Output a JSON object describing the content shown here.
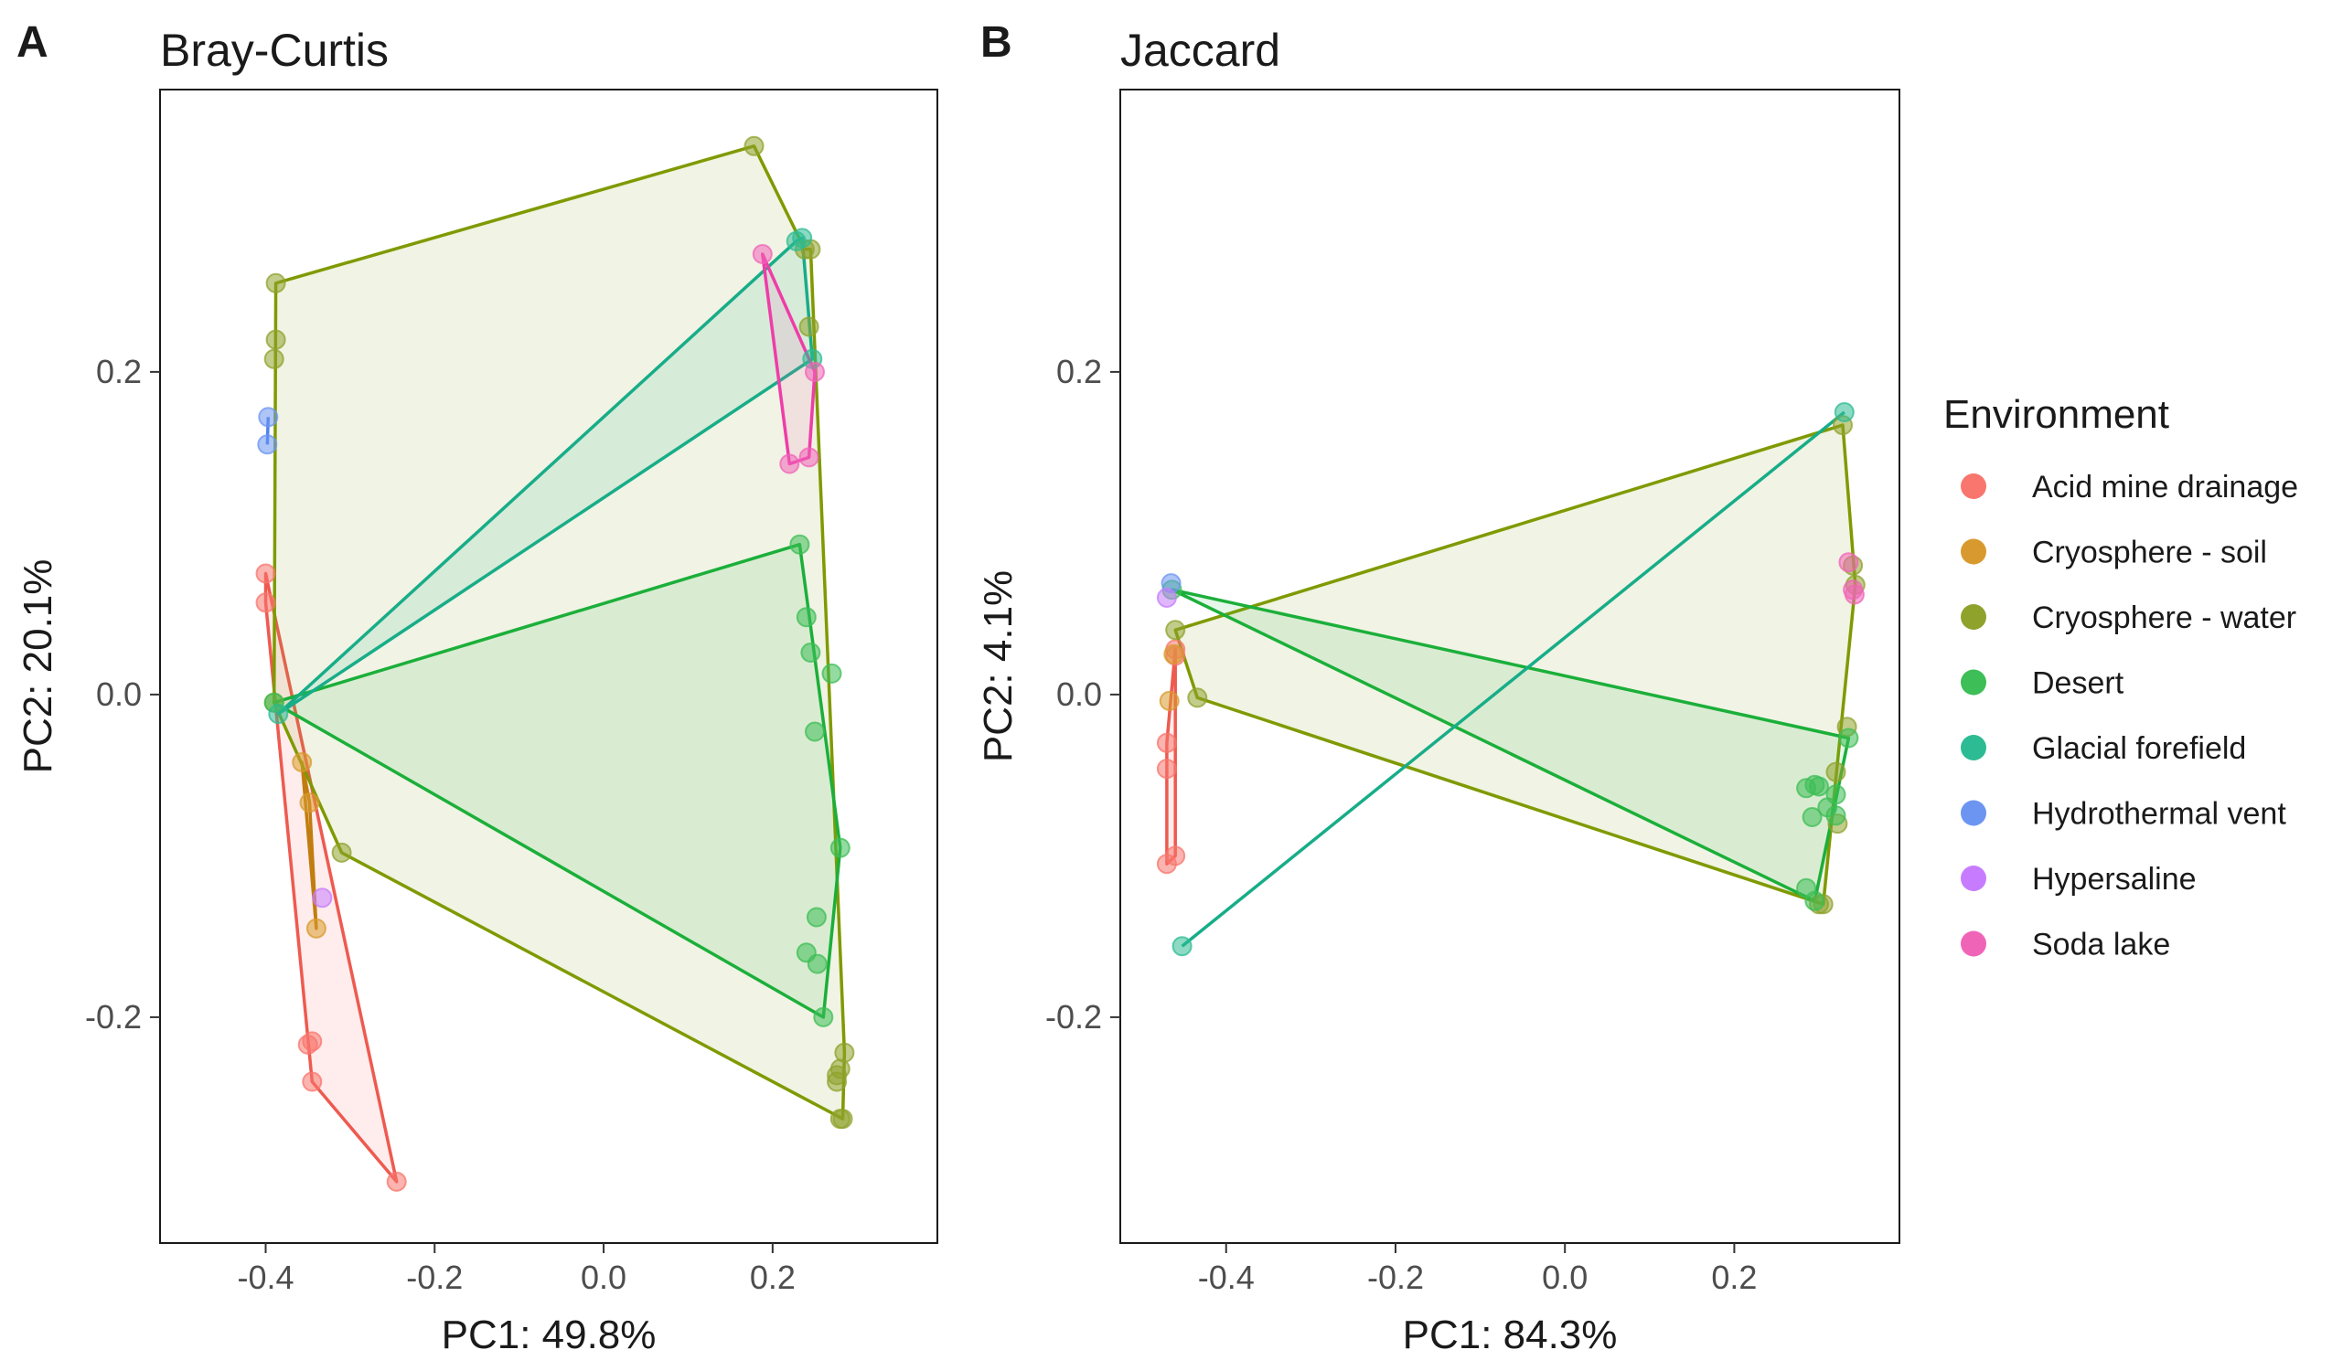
{
  "chart_data": [
    {
      "type": "scatter",
      "panel_label": "A",
      "title": "Bray-Curtis",
      "xlabel": "PC1: 49.8%",
      "ylabel": "PC2: 20.1%",
      "xlim": [
        -0.525,
        0.395
      ],
      "ylim": [
        -0.34,
        0.375
      ],
      "xticks": [
        -0.4,
        -0.2,
        0.0,
        0.2
      ],
      "xtick_labels": [
        "-0.4",
        "-0.2",
        "0.0",
        "0.2"
      ],
      "yticks": [
        -0.2,
        0.0,
        0.2
      ],
      "ytick_labels": [
        "-0.2",
        "0.0",
        "0.2"
      ],
      "series": [
        {
          "group": "Acid mine drainage",
          "points": [
            [
              -0.4,
              0.075
            ],
            [
              -0.4,
              0.057
            ],
            [
              -0.35,
              -0.217
            ],
            [
              -0.345,
              -0.215
            ],
            [
              -0.345,
              -0.24
            ],
            [
              -0.245,
              -0.302
            ]
          ],
          "hull": [
            [
              -0.4,
              0.075
            ],
            [
              -0.245,
              -0.302
            ],
            [
              -0.345,
              -0.24
            ],
            [
              -0.4,
              0.057
            ]
          ]
        },
        {
          "group": "Cryosphere - soil",
          "points": [
            [
              -0.357,
              -0.042
            ],
            [
              -0.348,
              -0.067
            ],
            [
              -0.34,
              -0.145
            ]
          ],
          "hull": [
            [
              -0.357,
              -0.042
            ],
            [
              -0.348,
              -0.067
            ],
            [
              -0.34,
              -0.145
            ]
          ]
        },
        {
          "group": "Cryosphere - water",
          "points": [
            [
              -0.388,
              0.255
            ],
            [
              -0.388,
              0.22
            ],
            [
              -0.39,
              0.208
            ],
            [
              -0.39,
              -0.005
            ],
            [
              -0.31,
              -0.098
            ],
            [
              0.178,
              0.34
            ],
            [
              0.238,
              0.276
            ],
            [
              0.245,
              0.276
            ],
            [
              0.243,
              0.228
            ],
            [
              0.285,
              -0.222
            ],
            [
              0.28,
              -0.232
            ],
            [
              0.276,
              -0.24
            ],
            [
              0.276,
              -0.236
            ],
            [
              0.283,
              -0.263
            ],
            [
              0.28,
              -0.263
            ]
          ],
          "hull": [
            [
              0.178,
              0.34
            ],
            [
              0.238,
              0.276
            ],
            [
              0.245,
              0.276
            ],
            [
              0.285,
              -0.222
            ],
            [
              0.283,
              -0.263
            ],
            [
              -0.31,
              -0.098
            ],
            [
              -0.39,
              -0.005
            ],
            [
              -0.388,
              0.255
            ]
          ]
        },
        {
          "group": "Desert",
          "points": [
            [
              -0.39,
              -0.005
            ],
            [
              0.232,
              0.093
            ],
            [
              0.24,
              0.048
            ],
            [
              0.245,
              0.026
            ],
            [
              0.27,
              0.013
            ],
            [
              0.25,
              -0.023
            ],
            [
              0.28,
              -0.095
            ],
            [
              0.252,
              -0.138
            ],
            [
              0.24,
              -0.16
            ],
            [
              0.253,
              -0.167
            ],
            [
              0.26,
              -0.2
            ]
          ],
          "hull": [
            [
              -0.39,
              -0.005
            ],
            [
              0.232,
              0.093
            ],
            [
              0.28,
              -0.095
            ],
            [
              0.26,
              -0.2
            ]
          ]
        },
        {
          "group": "Glacial forefield",
          "points": [
            [
              -0.385,
              -0.012
            ],
            [
              0.228,
              0.281
            ],
            [
              0.235,
              0.283
            ],
            [
              0.247,
              0.208
            ]
          ],
          "hull": [
            [
              -0.385,
              -0.012
            ],
            [
              0.228,
              0.281
            ],
            [
              0.235,
              0.283
            ],
            [
              0.247,
              0.208
            ]
          ]
        },
        {
          "group": "Hydrothermal vent",
          "points": [
            [
              -0.397,
              0.172
            ],
            [
              -0.398,
              0.155
            ]
          ],
          "hull": [
            [
              -0.397,
              0.172
            ],
            [
              -0.398,
              0.155
            ]
          ]
        },
        {
          "group": "Hypersaline",
          "points": [
            [
              -0.333,
              -0.126
            ]
          ],
          "hull": []
        },
        {
          "group": "Soda lake",
          "points": [
            [
              0.188,
              0.273
            ],
            [
              0.22,
              0.143
            ],
            [
              0.243,
              0.147
            ],
            [
              0.25,
              0.2
            ]
          ],
          "hull": [
            [
              0.188,
              0.273
            ],
            [
              0.25,
              0.2
            ],
            [
              0.243,
              0.147
            ],
            [
              0.22,
              0.143
            ]
          ]
        }
      ]
    },
    {
      "type": "scatter",
      "panel_label": "B",
      "title": "Jaccard",
      "xlabel": "PC1: 84.3%",
      "ylabel": "PC2: 4.1%",
      "xlim": [
        -0.525,
        0.395
      ],
      "ylim": [
        -0.34,
        0.375
      ],
      "xticks": [
        -0.4,
        -0.2,
        0.0,
        0.2
      ],
      "xtick_labels": [
        "-0.4",
        "-0.2",
        "0.0",
        "0.2"
      ],
      "yticks": [
        -0.2,
        0.0,
        0.2
      ],
      "ytick_labels": [
        "-0.2",
        "0.0",
        "0.2"
      ],
      "series": [
        {
          "group": "Acid mine drainage",
          "points": [
            [
              -0.47,
              -0.03
            ],
            [
              -0.47,
              -0.046
            ],
            [
              -0.47,
              -0.105
            ],
            [
              -0.46,
              -0.1
            ],
            [
              -0.46,
              0.028
            ],
            [
              -0.46,
              0.024
            ]
          ],
          "hull": [
            [
              -0.46,
              0.028
            ],
            [
              -0.46,
              -0.1
            ],
            [
              -0.47,
              -0.105
            ],
            [
              -0.47,
              -0.03
            ]
          ]
        },
        {
          "group": "Cryosphere - soil",
          "points": [
            [
              -0.467,
              -0.004
            ],
            [
              -0.462,
              0.025
            ]
          ],
          "hull": []
        },
        {
          "group": "Cryosphere - water",
          "points": [
            [
              -0.46,
              0.04
            ],
            [
              -0.434,
              -0.002
            ],
            [
              0.328,
              0.167
            ],
            [
              0.34,
              0.08
            ],
            [
              0.343,
              0.068
            ],
            [
              0.333,
              -0.02
            ],
            [
              0.32,
              -0.048
            ],
            [
              0.322,
              -0.08
            ],
            [
              0.305,
              -0.13
            ],
            [
              0.3,
              -0.13
            ]
          ],
          "hull": [
            [
              -0.46,
              0.04
            ],
            [
              0.328,
              0.167
            ],
            [
              0.343,
              0.068
            ],
            [
              0.305,
              -0.13
            ],
            [
              -0.434,
              -0.002
            ]
          ]
        },
        {
          "group": "Desert",
          "points": [
            [
              -0.464,
              0.065
            ],
            [
              0.335,
              -0.027
            ],
            [
              0.285,
              -0.058
            ],
            [
              0.295,
              -0.056
            ],
            [
              0.3,
              -0.057
            ],
            [
              0.31,
              -0.07
            ],
            [
              0.32,
              -0.062
            ],
            [
              0.32,
              -0.075
            ],
            [
              0.292,
              -0.076
            ],
            [
              0.285,
              -0.12
            ],
            [
              0.295,
              -0.128
            ]
          ],
          "hull": [
            [
              -0.464,
              0.065
            ],
            [
              0.335,
              -0.027
            ],
            [
              0.295,
              -0.128
            ]
          ]
        },
        {
          "group": "Glacial forefield",
          "points": [
            [
              0.33,
              0.175
            ],
            [
              -0.452,
              -0.156
            ]
          ],
          "hull": [
            [
              0.33,
              0.175
            ],
            [
              -0.452,
              -0.156
            ]
          ]
        },
        {
          "group": "Hydrothermal vent",
          "points": [
            [
              -0.465,
              0.069
            ]
          ],
          "hull": []
        },
        {
          "group": "Hypersaline",
          "points": [
            [
              -0.47,
              0.06
            ]
          ],
          "hull": []
        },
        {
          "group": "Soda lake",
          "points": [
            [
              0.335,
              0.082
            ],
            [
              0.34,
              0.065
            ],
            [
              0.342,
              0.062
            ]
          ],
          "hull": []
        }
      ]
    }
  ],
  "legend": {
    "title": "Environment",
    "position": "right",
    "items": [
      {
        "name": "Acid mine drainage",
        "color": "#F8766D"
      },
      {
        "name": "Cryosphere - soil",
        "color": "#CD9600"
      },
      {
        "name": "Cryosphere - water",
        "color": "#7CAE00"
      },
      {
        "name": "Desert",
        "color": "#00BE67"
      },
      {
        "name": "Glacial forefield",
        "color": "#00BFA4"
      },
      {
        "name": "Hydrothermal vent",
        "color": "#619CFF"
      },
      {
        "name": "Hypersaline",
        "color": "#C77CFF"
      },
      {
        "name": "Soda lake",
        "color": "#FF61C3"
      }
    ]
  },
  "colors": {
    "Acid mine drainage": {
      "point": "#F8766D",
      "line": "#EE5A50"
    },
    "Cryosphere - soil": {
      "point": "#D89A2E",
      "line": "#C17D10"
    },
    "Cryosphere - water": {
      "point": "#8FA22C",
      "line": "#7F9A00"
    },
    "Desert": {
      "point": "#3DBE56",
      "line": "#1BAF3A"
    },
    "Glacial forefield": {
      "point": "#2DBB93",
      "line": "#17AD88"
    },
    "Hydrothermal vent": {
      "point": "#6C95F2",
      "line": "#4F82F0"
    },
    "Hypersaline": {
      "point": "#C77CFF",
      "line": "#B55CF0"
    },
    "Soda lake": {
      "point": "#F064B8",
      "line": "#EE3DA8"
    }
  }
}
